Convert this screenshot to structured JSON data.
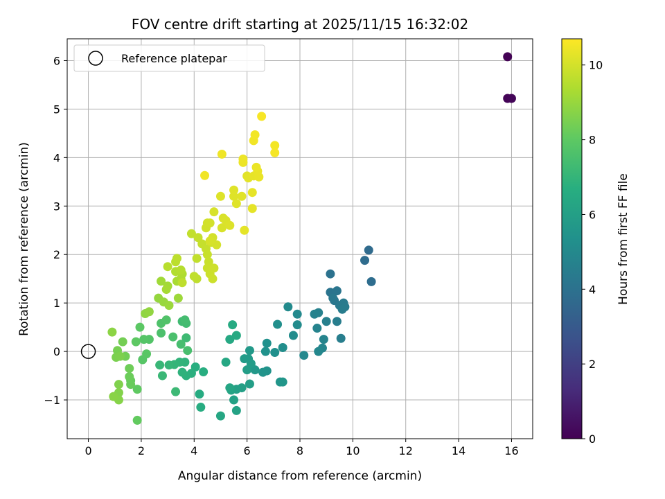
{
  "chart_data": {
    "type": "scatter",
    "title": "FOV centre drift starting at 2025/11/15 16:32:02",
    "xlabel": "Angular distance from reference (arcmin)",
    "ylabel": "Rotation from reference (arcmin)",
    "xlim": [
      -0.8,
      16.8
    ],
    "ylim": [
      -1.8,
      6.45
    ],
    "xticks": [
      0,
      2,
      4,
      6,
      8,
      10,
      12,
      14,
      16
    ],
    "yticks": [
      -1,
      0,
      1,
      2,
      3,
      4,
      5,
      6
    ],
    "grid": true,
    "legend": {
      "placement": "top-left",
      "entries": [
        "Reference platepar"
      ]
    },
    "reference_point": {
      "x": 0,
      "y": 0,
      "label": "Reference platepar"
    },
    "colorbar": {
      "label": "Hours from first FF file",
      "range": [
        0,
        10.7
      ],
      "ticks": [
        0,
        2,
        4,
        6,
        8,
        10
      ],
      "colormap": "viridis"
    },
    "points": [
      [
        15.85,
        6.08,
        0.05
      ],
      [
        15.85,
        5.22,
        0.1
      ],
      [
        16.0,
        5.22,
        0.15
      ],
      [
        10.6,
        2.09,
        3.7
      ],
      [
        10.45,
        1.88,
        3.75
      ],
      [
        10.7,
        1.44,
        3.8
      ],
      [
        9.15,
        1.6,
        4.0
      ],
      [
        9.15,
        1.22,
        4.1
      ],
      [
        9.4,
        1.25,
        4.15
      ],
      [
        9.3,
        1.05,
        4.2
      ],
      [
        9.5,
        0.95,
        4.3
      ],
      [
        9.65,
        1.0,
        4.35
      ],
      [
        9.7,
        0.92,
        4.4
      ],
      [
        9.6,
        0.87,
        4.45
      ],
      [
        9.25,
        1.1,
        4.25
      ],
      [
        9.4,
        0.62,
        4.5
      ],
      [
        9.55,
        0.27,
        4.55
      ],
      [
        9.0,
        0.62,
        4.6
      ],
      [
        8.7,
        0.8,
        4.65
      ],
      [
        8.55,
        0.77,
        4.7
      ],
      [
        8.65,
        0.48,
        4.75
      ],
      [
        8.9,
        0.25,
        4.8
      ],
      [
        8.85,
        0.07,
        4.85
      ],
      [
        8.7,
        0.0,
        4.9
      ],
      [
        8.15,
        -0.08,
        4.95
      ],
      [
        7.9,
        0.77,
        5.0
      ],
      [
        7.55,
        0.92,
        5.05
      ],
      [
        7.9,
        0.55,
        5.1
      ],
      [
        7.75,
        0.33,
        5.15
      ],
      [
        7.35,
        0.08,
        5.2
      ],
      [
        7.15,
        0.56,
        5.25
      ],
      [
        7.05,
        -0.02,
        5.3
      ],
      [
        6.75,
        0.17,
        5.35
      ],
      [
        6.7,
        0.0,
        5.4
      ],
      [
        6.75,
        -0.4,
        5.45
      ],
      [
        6.6,
        -0.43,
        5.5
      ],
      [
        7.25,
        -0.63,
        5.55
      ],
      [
        7.35,
        -0.63,
        5.6
      ],
      [
        6.3,
        -0.38,
        5.65
      ],
      [
        6.1,
        0.02,
        5.7
      ],
      [
        6.05,
        -0.15,
        5.75
      ],
      [
        5.9,
        -0.15,
        5.8
      ],
      [
        6.15,
        -0.25,
        5.85
      ],
      [
        6.0,
        -0.38,
        5.9
      ],
      [
        6.1,
        -0.67,
        5.95
      ],
      [
        5.8,
        -0.75,
        6.0
      ],
      [
        5.6,
        -0.78,
        6.05
      ],
      [
        5.5,
        -1.0,
        6.1
      ],
      [
        5.6,
        -1.22,
        6.15
      ],
      [
        5.4,
        -0.8,
        6.2
      ],
      [
        5.35,
        -0.75,
        6.25
      ],
      [
        5.0,
        -1.33,
        6.3
      ],
      [
        5.2,
        -0.22,
        6.35
      ],
      [
        5.35,
        0.25,
        6.4
      ],
      [
        5.6,
        0.33,
        6.45
      ],
      [
        5.45,
        0.55,
        6.5
      ],
      [
        4.2,
        -0.88,
        6.55
      ],
      [
        4.25,
        -1.15,
        6.6
      ],
      [
        4.35,
        -0.42,
        6.65
      ],
      [
        4.05,
        -0.32,
        6.7
      ],
      [
        3.9,
        -0.45,
        6.75
      ],
      [
        3.7,
        -0.5,
        6.8
      ],
      [
        3.55,
        -0.43,
        6.85
      ],
      [
        3.65,
        -0.22,
        6.9
      ],
      [
        3.45,
        -0.22,
        6.95
      ],
      [
        3.25,
        -0.27,
        7.0
      ],
      [
        3.05,
        -0.28,
        7.05
      ],
      [
        2.7,
        -0.28,
        7.1
      ],
      [
        2.8,
        -0.5,
        7.15
      ],
      [
        3.3,
        -0.83,
        7.2
      ],
      [
        3.7,
        0.28,
        7.25
      ],
      [
        3.55,
        0.62,
        7.3
      ],
      [
        3.7,
        0.58,
        7.35
      ],
      [
        3.65,
        0.65,
        7.4
      ],
      [
        3.5,
        0.15,
        7.45
      ],
      [
        3.75,
        0.02,
        7.5
      ],
      [
        3.2,
        0.3,
        7.55
      ],
      [
        2.75,
        0.38,
        7.6
      ],
      [
        2.75,
        0.58,
        7.65
      ],
      [
        2.95,
        0.65,
        7.7
      ],
      [
        2.3,
        0.25,
        7.75
      ],
      [
        2.1,
        0.25,
        7.8
      ],
      [
        2.05,
        -0.17,
        7.85
      ],
      [
        2.2,
        -0.05,
        7.9
      ],
      [
        1.95,
        0.5,
        7.95
      ],
      [
        1.8,
        0.2,
        8.0
      ],
      [
        1.85,
        -0.78,
        8.05
      ],
      [
        1.85,
        -1.42,
        8.1
      ],
      [
        1.6,
        -0.6,
        8.15
      ],
      [
        1.6,
        -0.68,
        8.2
      ],
      [
        1.55,
        -0.52,
        8.25
      ],
      [
        1.55,
        -0.35,
        8.3
      ],
      [
        1.4,
        -0.1,
        8.35
      ],
      [
        1.3,
        0.2,
        8.4
      ],
      [
        1.1,
        0.02,
        8.45
      ],
      [
        1.05,
        -0.12,
        8.5
      ],
      [
        1.2,
        -0.1,
        8.55
      ],
      [
        1.15,
        -0.68,
        8.6
      ],
      [
        1.15,
        -0.85,
        8.65
      ],
      [
        1.15,
        -1.0,
        8.7
      ],
      [
        0.95,
        -0.93,
        8.75
      ],
      [
        0.9,
        0.4,
        8.8
      ],
      [
        2.15,
        0.78,
        8.85
      ],
      [
        2.3,
        0.82,
        8.9
      ],
      [
        2.65,
        1.1,
        8.95
      ],
      [
        2.85,
        1.02,
        9.0
      ],
      [
        3.05,
        0.95,
        9.05
      ],
      [
        3.4,
        1.1,
        9.1
      ],
      [
        2.75,
        1.45,
        9.15
      ],
      [
        3.0,
        1.35,
        9.2
      ],
      [
        2.95,
        1.28,
        9.25
      ],
      [
        3.35,
        1.45,
        9.3
      ],
      [
        3.5,
        1.5,
        9.35
      ],
      [
        3.55,
        1.6,
        9.4
      ],
      [
        3.3,
        1.65,
        9.45
      ],
      [
        3.5,
        1.68,
        9.5
      ],
      [
        3.0,
        1.75,
        9.55
      ],
      [
        3.3,
        1.85,
        9.6
      ],
      [
        3.35,
        1.92,
        9.62
      ],
      [
        3.55,
        1.42,
        9.64
      ],
      [
        4.1,
        1.5,
        9.66
      ],
      [
        4.0,
        1.55,
        9.68
      ],
      [
        4.1,
        1.92,
        9.7
      ],
      [
        3.9,
        2.43,
        9.72
      ],
      [
        4.15,
        2.35,
        9.74
      ],
      [
        4.3,
        2.22,
        9.76
      ],
      [
        4.45,
        2.12,
        9.78
      ],
      [
        4.5,
        2.0,
        9.8
      ],
      [
        4.55,
        1.85,
        9.82
      ],
      [
        4.5,
        1.72,
        9.84
      ],
      [
        4.6,
        1.6,
        9.86
      ],
      [
        4.7,
        1.5,
        9.88
      ],
      [
        4.75,
        1.72,
        9.9
      ],
      [
        4.65,
        2.25,
        9.92
      ],
      [
        4.45,
        2.55,
        9.94
      ],
      [
        4.5,
        2.65,
        9.96
      ],
      [
        4.6,
        2.65,
        9.98
      ],
      [
        4.7,
        2.35,
        10.0
      ],
      [
        4.85,
        2.2,
        10.02
      ],
      [
        4.6,
        2.28,
        10.04
      ],
      [
        4.75,
        2.88,
        10.06
      ],
      [
        5.05,
        2.55,
        10.08
      ],
      [
        5.1,
        2.75,
        10.1
      ],
      [
        5.2,
        2.7,
        10.12
      ],
      [
        5.35,
        2.6,
        10.14
      ],
      [
        5.0,
        3.2,
        10.16
      ],
      [
        5.5,
        3.2,
        10.18
      ],
      [
        5.5,
        3.33,
        10.2
      ],
      [
        5.8,
        3.2,
        10.22
      ],
      [
        6.0,
        3.62,
        10.24
      ],
      [
        6.05,
        3.58,
        10.26
      ],
      [
        5.9,
        2.5,
        10.28
      ],
      [
        6.2,
        2.95,
        10.3
      ],
      [
        6.2,
        3.28,
        10.32
      ],
      [
        6.25,
        3.62,
        10.34
      ],
      [
        6.45,
        3.6,
        10.36
      ],
      [
        6.4,
        3.72,
        10.38
      ],
      [
        6.35,
        3.8,
        10.4
      ],
      [
        5.85,
        3.9,
        10.42
      ],
      [
        5.85,
        3.97,
        10.44
      ],
      [
        5.05,
        4.07,
        10.46
      ],
      [
        4.4,
        3.63,
        10.48
      ],
      [
        6.25,
        4.35,
        10.5
      ],
      [
        6.3,
        4.47,
        10.52
      ],
      [
        7.05,
        4.25,
        10.54
      ],
      [
        7.05,
        4.1,
        10.56
      ],
      [
        6.55,
        4.85,
        10.6
      ],
      [
        5.6,
        3.05,
        10.2
      ]
    ]
  }
}
